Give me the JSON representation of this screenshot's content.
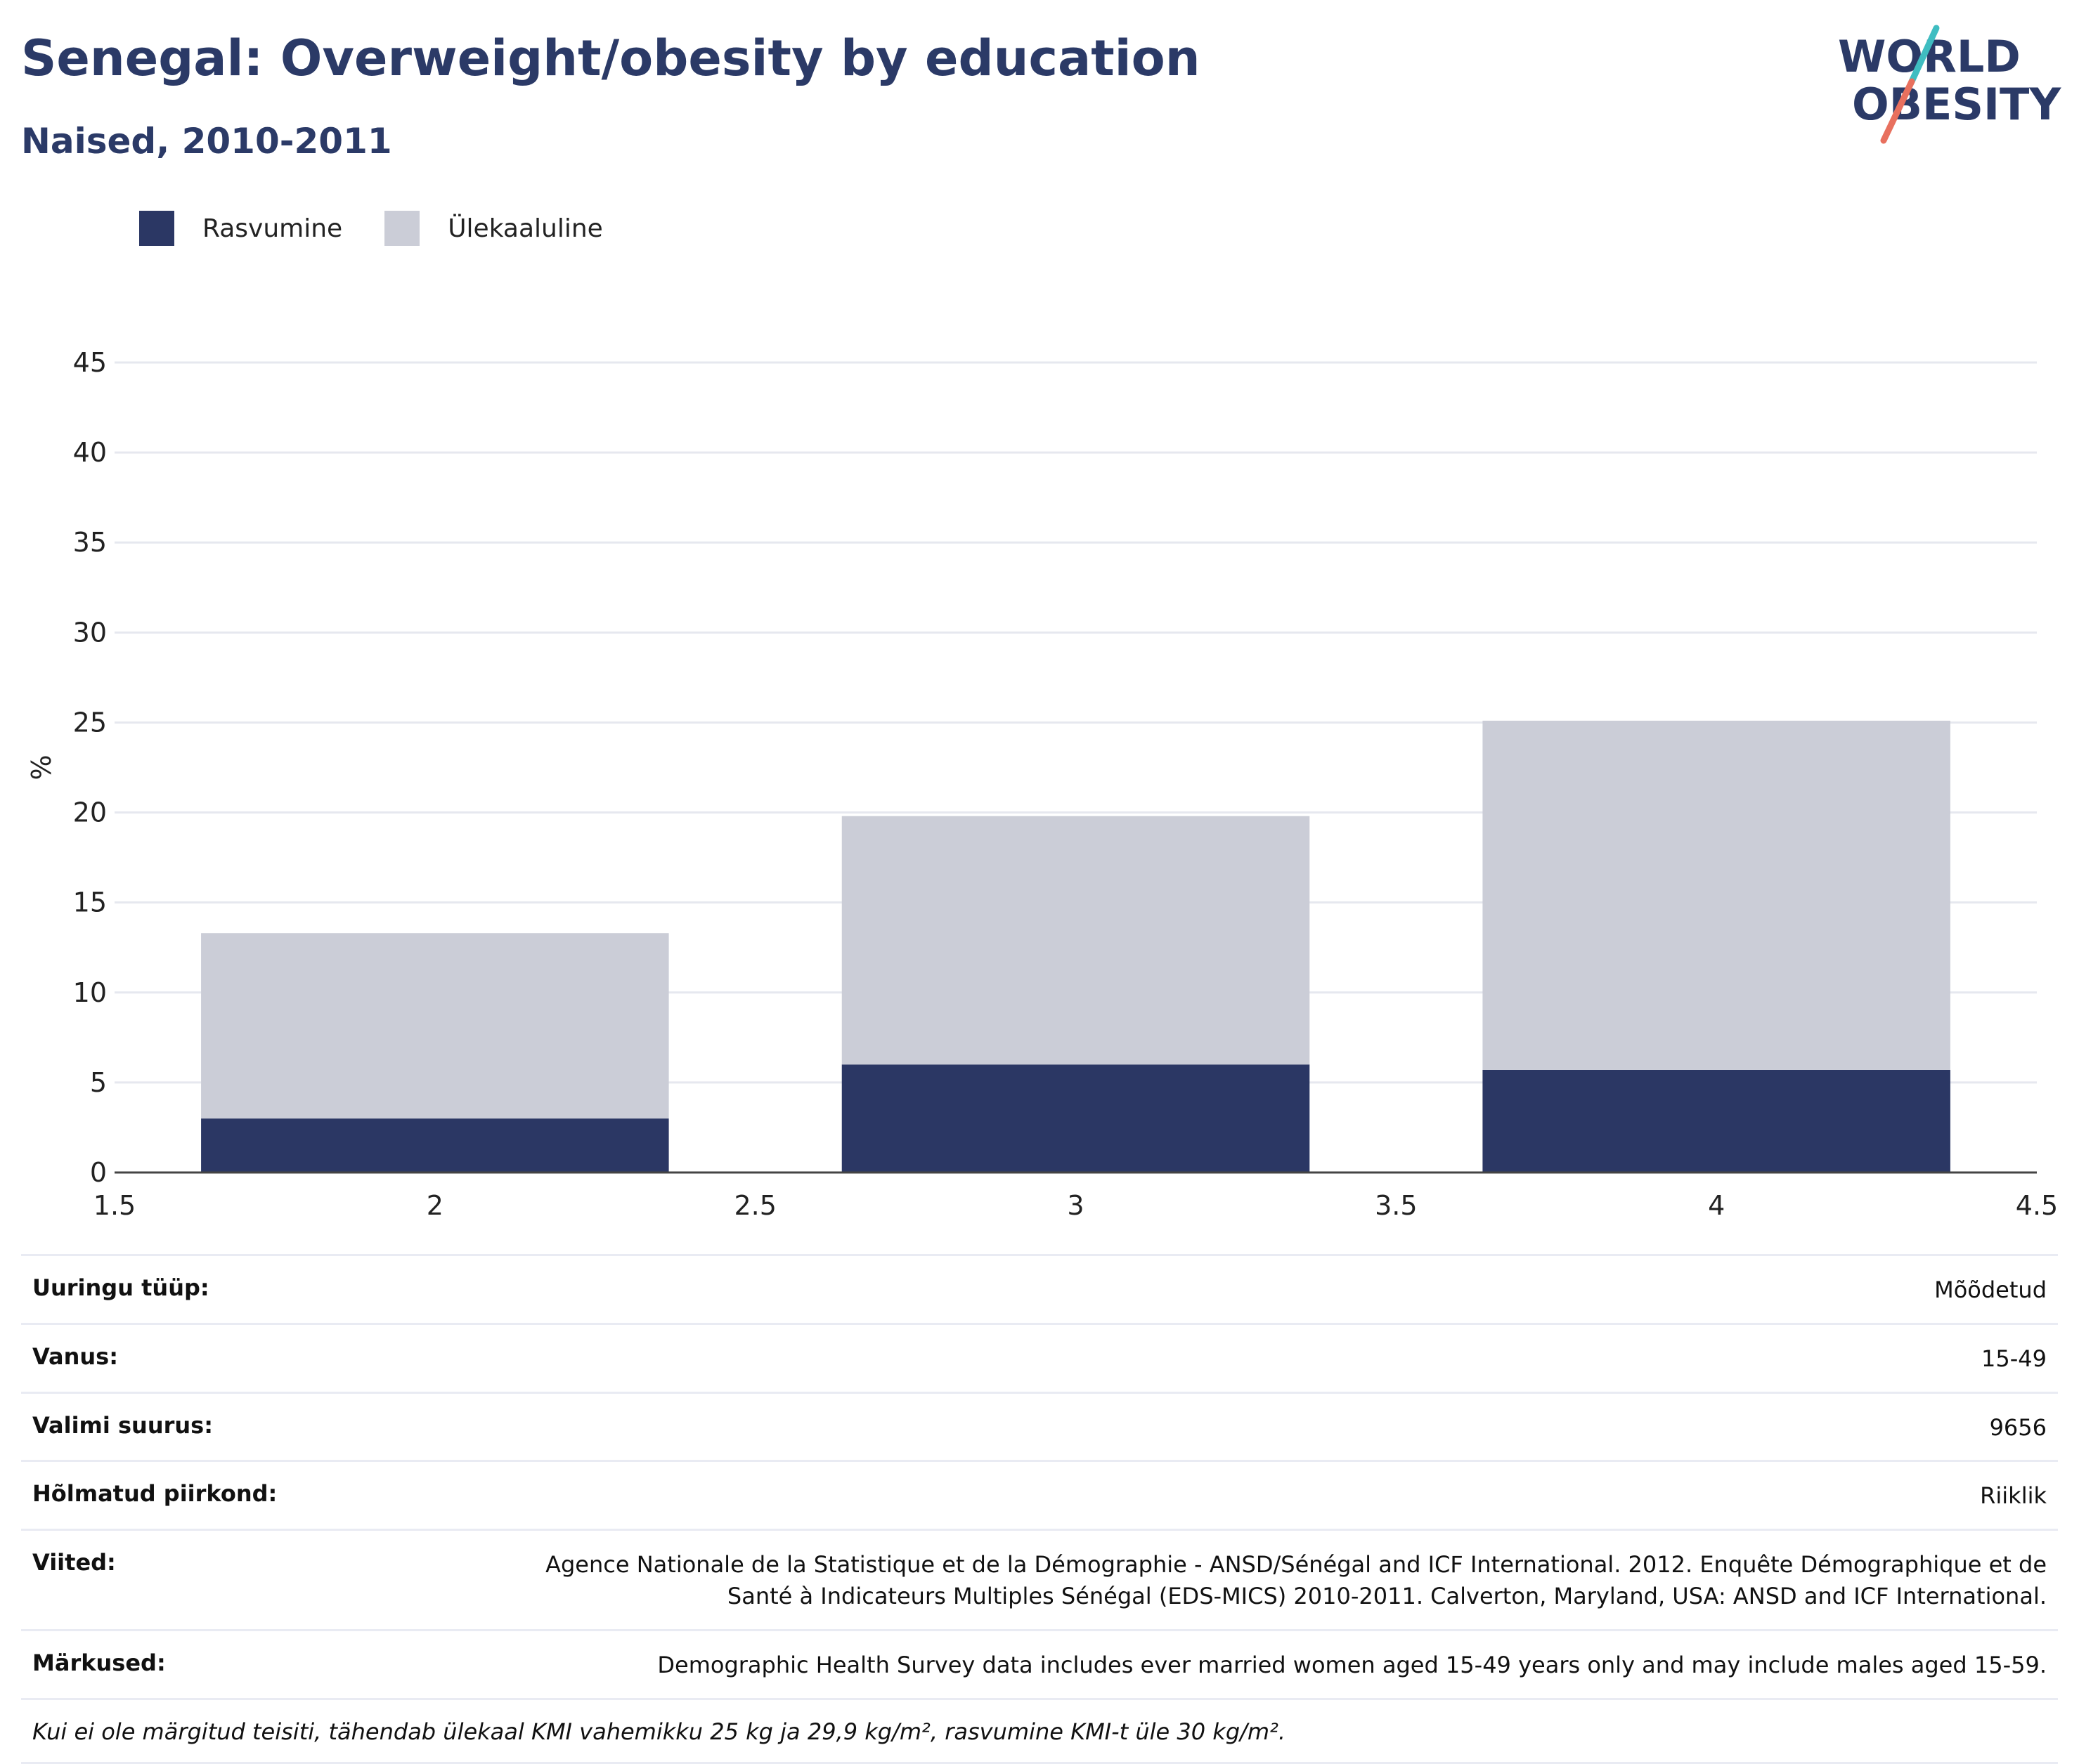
{
  "header": {
    "title": "Senegal: Overweight/obesity by education",
    "subtitle": "Naised, 2010-2011",
    "logo_text_line1": "WORLD",
    "logo_text_line2": "OBESITY"
  },
  "colors": {
    "obesity": "#2b3764",
    "overweight": "#cbcdd7",
    "title": "#2b3a67",
    "grid": "#e6e8ef",
    "logo_teal": "#3fbdc1",
    "logo_coral": "#e8705e"
  },
  "legend": {
    "items": [
      {
        "label": "Rasvumine",
        "color": "#2b3764"
      },
      {
        "label": "Ülekaaluline",
        "color": "#cbcdd7"
      }
    ]
  },
  "chart_data": {
    "type": "bar",
    "stacked": true,
    "ylabel": "%",
    "xlim": [
      1.5,
      4.5
    ],
    "ylim": [
      0,
      45
    ],
    "xticks": [
      1.5,
      2,
      2.5,
      3,
      3.5,
      4,
      4.5
    ],
    "yticks": [
      0,
      5,
      10,
      15,
      20,
      25,
      30,
      35,
      40,
      45
    ],
    "x": [
      2,
      3,
      4
    ],
    "grid": true,
    "legend_position": "top-left",
    "series": [
      {
        "name": "Rasvumine",
        "color": "#2b3764",
        "values": [
          3.0,
          6.0,
          5.7
        ]
      },
      {
        "name": "Ülekaaluline",
        "color": "#cbcdd7",
        "values": [
          10.3,
          13.8,
          19.4
        ]
      }
    ]
  },
  "meta": {
    "rows": [
      {
        "label": "Uuringu tüüp:",
        "value": "Mõõdetud"
      },
      {
        "label": "Vanus:",
        "value": "15-49"
      },
      {
        "label": "Valimi suurus:",
        "value": "9656"
      },
      {
        "label": "Hõlmatud piirkond:",
        "value": "Riiklik"
      },
      {
        "label": "Viited:",
        "value": "Agence Nationale de la Statistique et de la Démographie - ANSD/Sénégal and ICF International. 2012. Enquête Démographique et de Santé à Indicateurs Multiples Sénégal (EDS-MICS) 2010-2011. Calverton, Maryland, USA: ANSD and ICF International."
      },
      {
        "label": "Märkused:",
        "value": "Demographic Health Survey data includes ever married women aged 15-49 years only and may include males aged 15-59."
      }
    ],
    "footnote": "Kui ei ole märgitud teisiti, tähendab ülekaal KMI vahemikku 25 kg ja 29,9 kg/m², rasvumine KMI-t üle 30 kg/m²."
  }
}
